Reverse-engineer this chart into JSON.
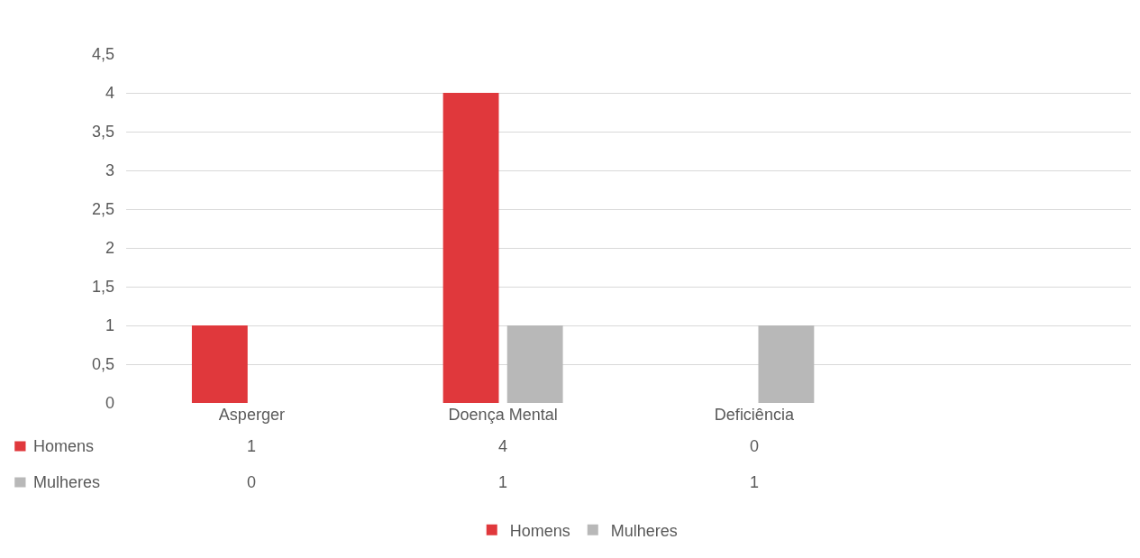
{
  "chart_data": {
    "type": "bar",
    "categories": [
      "Asperger",
      "Doença Mental",
      "Deficiência",
      null
    ],
    "series": [
      {
        "name": "Homens",
        "color": "#e0383c",
        "values": [
          1,
          4,
          0,
          null
        ]
      },
      {
        "name": "Mulheres",
        "color": "#b8b8b8",
        "values": [
          0,
          1,
          1,
          null
        ]
      }
    ],
    "ylim": [
      0,
      4.5
    ],
    "yticks": [
      0,
      {
        "value": 0.5,
        "label": "0,5"
      },
      1,
      {
        "value": 1.5,
        "label": "1,5"
      },
      2,
      {
        "value": 2.5,
        "label": "2,5"
      },
      3,
      {
        "value": 3.5,
        "label": "3,5"
      },
      4,
      {
        "value": 4.5,
        "label": "4,5"
      }
    ],
    "grid": "y",
    "legend": "bottom",
    "data_labels": true
  }
}
